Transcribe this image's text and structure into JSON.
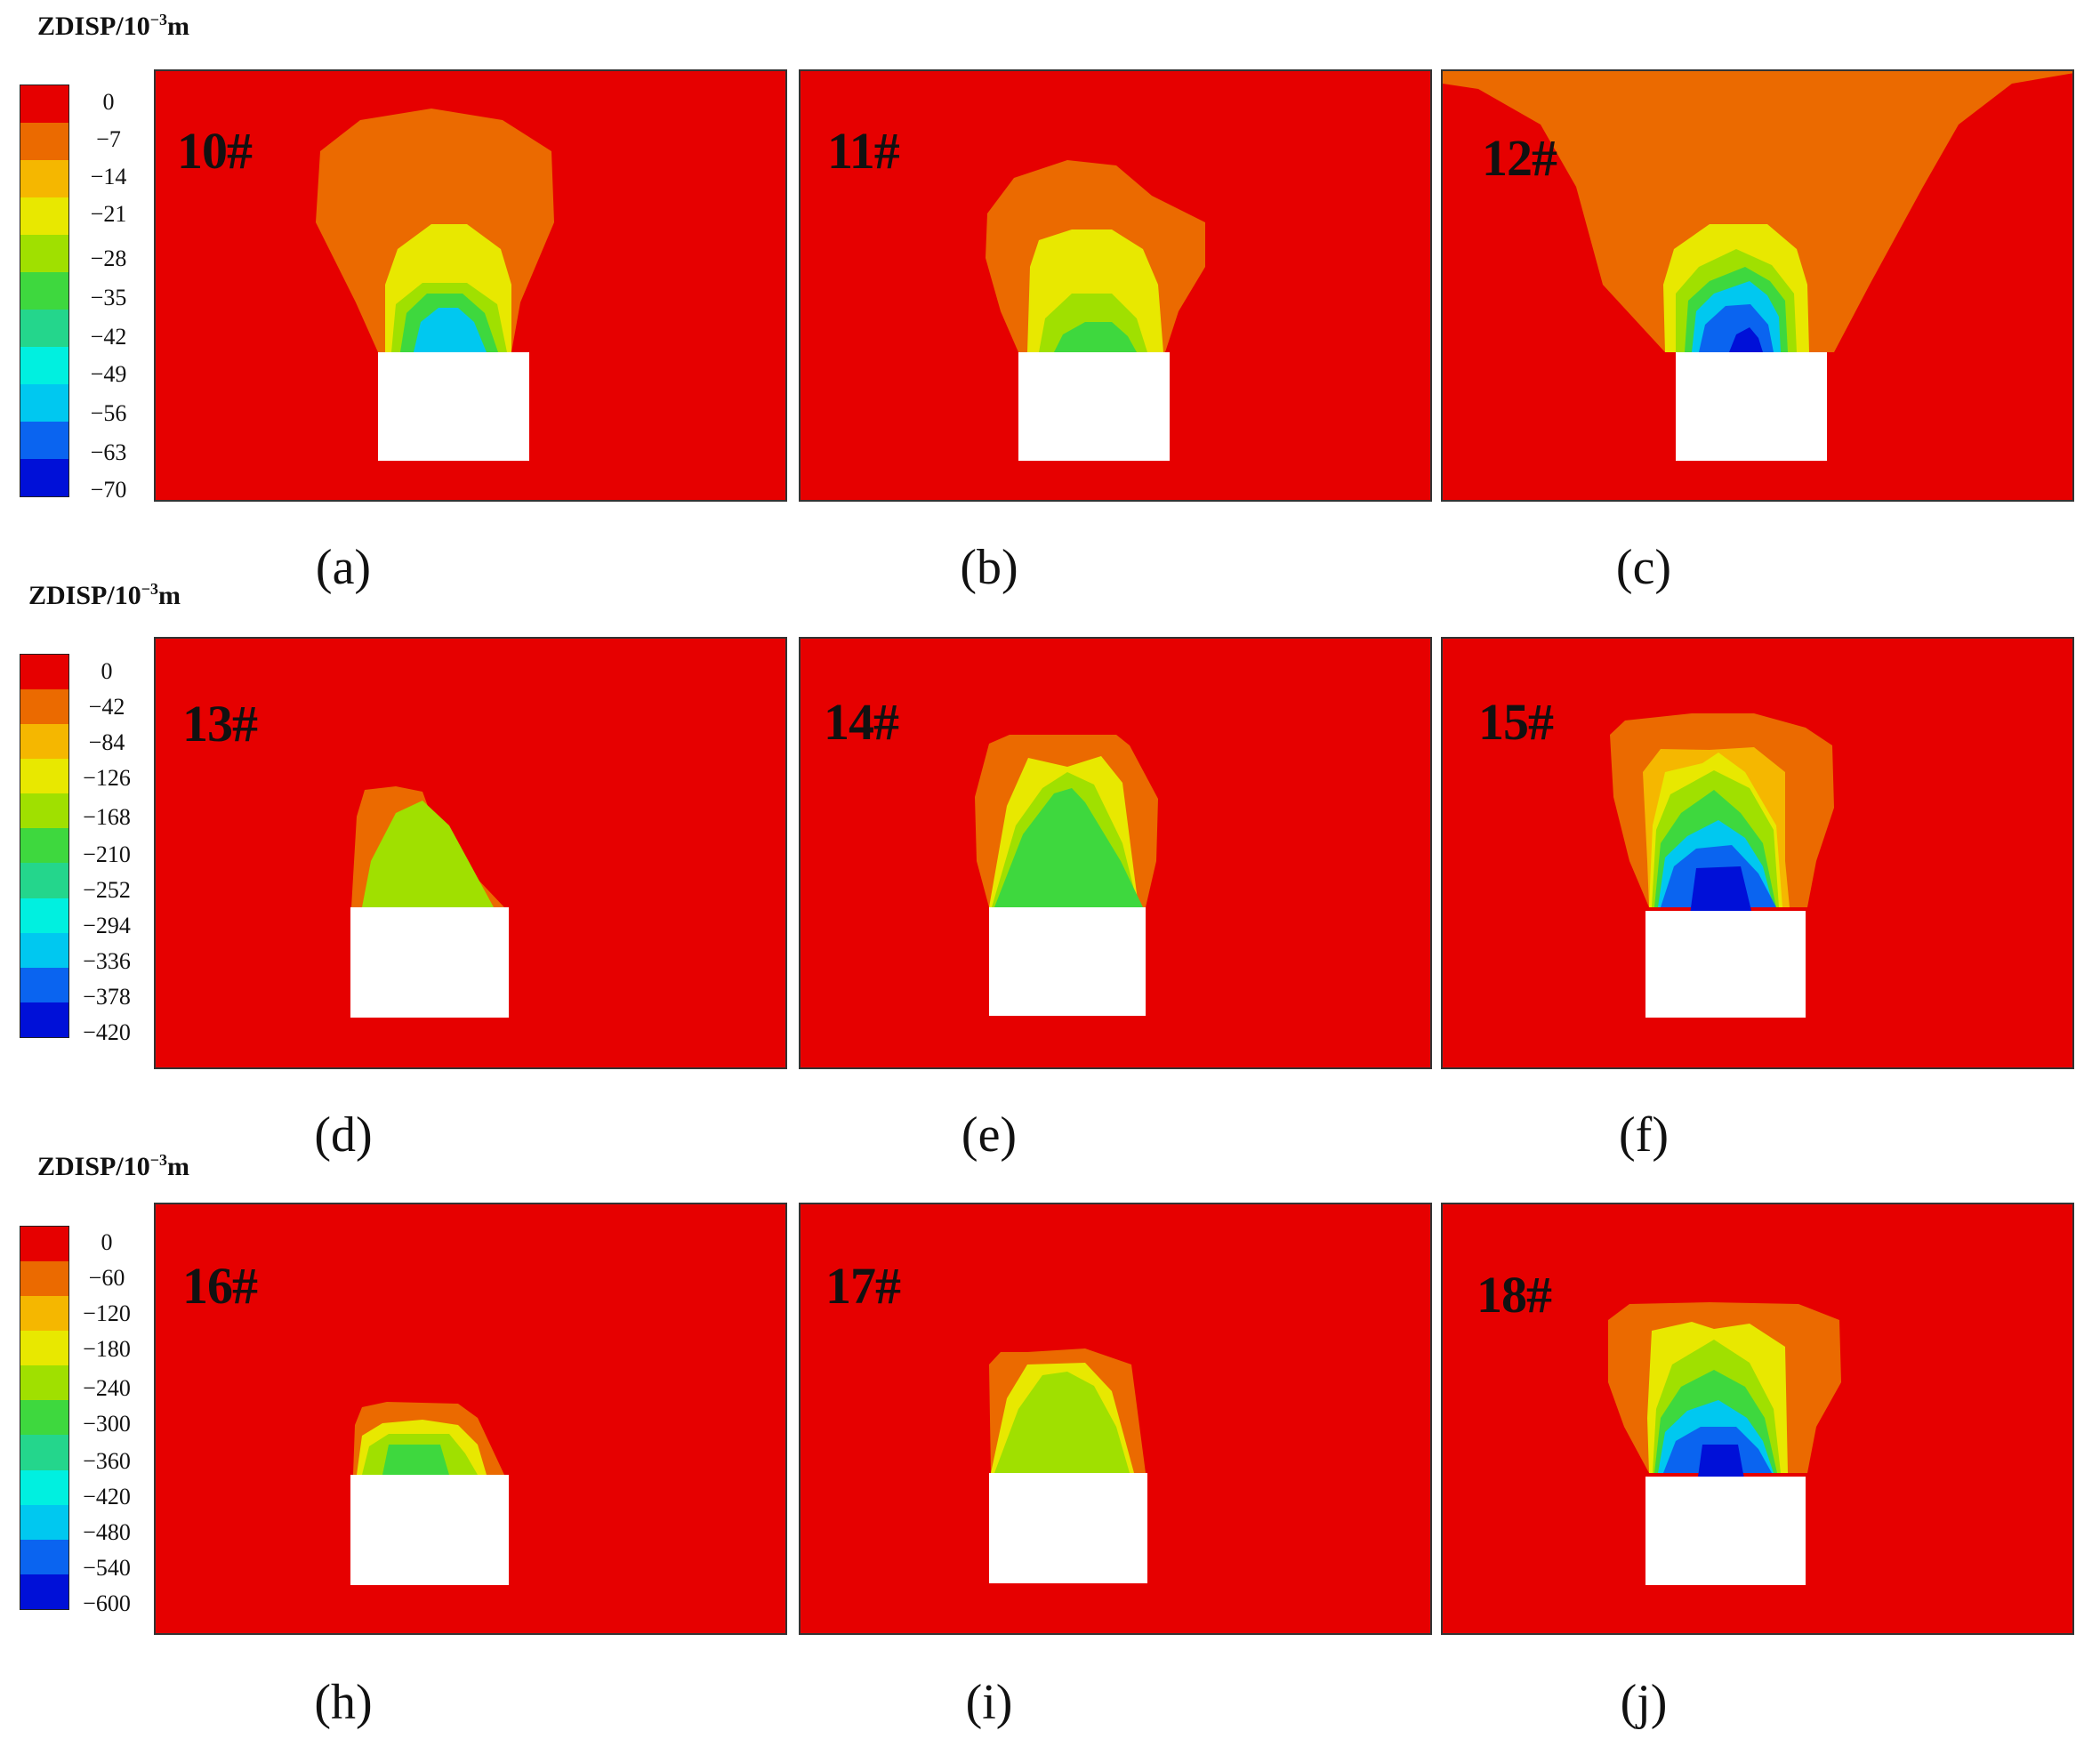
{
  "legend_title_main": "ZDISP/10",
  "legend_title_exp": "−3",
  "legend_title_unit": "m",
  "legend_colors": [
    "#e60000",
    "#eb6a00",
    "#f5b700",
    "#e8e800",
    "#a0e000",
    "#3ed83e",
    "#24d68c",
    "#00f0e0",
    "#00c8f0",
    "#0a64f0",
    "#0010d8"
  ],
  "legends": [
    {
      "ticks": [
        "0",
        "−7",
        "−14",
        "−21",
        "−28",
        "−35",
        "−42",
        "−49",
        "−56",
        "−63",
        "−70"
      ]
    },
    {
      "ticks": [
        "0",
        "−42",
        "−84",
        "−126",
        "−168",
        "−210",
        "−252",
        "−294",
        "−336",
        "−378",
        "−420"
      ]
    },
    {
      "ticks": [
        "0",
        "−60",
        "−120",
        "−180",
        "−240",
        "−300",
        "−360",
        "−420",
        "−480",
        "−540",
        "−600"
      ]
    }
  ],
  "panels": [
    {
      "label": "10#",
      "caption": "(a)"
    },
    {
      "label": "11#",
      "caption": "(b)"
    },
    {
      "label": "12#",
      "caption": "(c)"
    },
    {
      "label": "13#",
      "caption": "(d)"
    },
    {
      "label": "14#",
      "caption": "(e)"
    },
    {
      "label": "15#",
      "caption": "(f)"
    },
    {
      "label": "16#",
      "caption": "(h)"
    },
    {
      "label": "17#",
      "caption": "(i)"
    },
    {
      "label": "18#",
      "caption": "(j)"
    }
  ]
}
